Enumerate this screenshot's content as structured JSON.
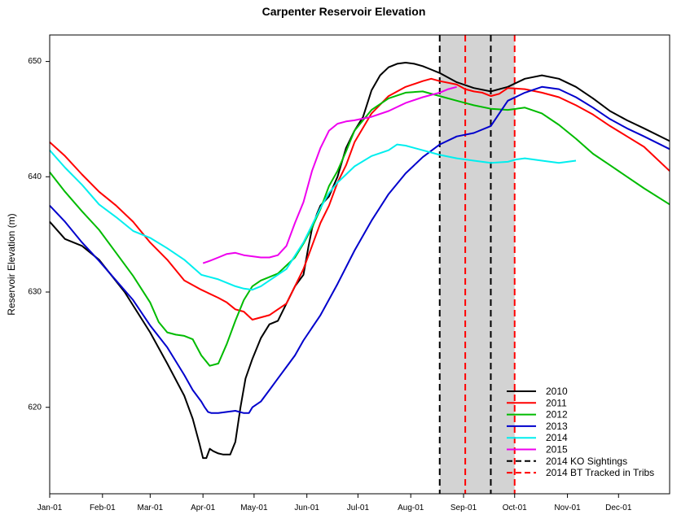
{
  "chart_data": {
    "type": "line",
    "title": "Carpenter Reservoir Elevation",
    "xlabel": "",
    "ylabel": "Reservoir Elevation (m)",
    "x_unit": "day of year",
    "xlim": [
      1,
      365
    ],
    "ylim": [
      612.5,
      652.3
    ],
    "x_ticks": [
      {
        "day": 1,
        "label": "Jan-01"
      },
      {
        "day": 32,
        "label": "Feb-01"
      },
      {
        "day": 60,
        "label": "Mar-01"
      },
      {
        "day": 91,
        "label": "Apr-01"
      },
      {
        "day": 121,
        "label": "May-01"
      },
      {
        "day": 152,
        "label": "Jun-01"
      },
      {
        "day": 182,
        "label": "Jul-01"
      },
      {
        "day": 213,
        "label": "Aug-01"
      },
      {
        "day": 244,
        "label": "Sep-01"
      },
      {
        "day": 274,
        "label": "Oct-01"
      },
      {
        "day": 305,
        "label": "Nov-01"
      },
      {
        "day": 335,
        "label": "Dec-01"
      }
    ],
    "y_ticks": [
      620,
      630,
      640,
      650
    ],
    "shaded_region": {
      "from": 230,
      "to": 274,
      "color": "#d3d3d3"
    },
    "vertical_lines": [
      {
        "day": 230,
        "series": "2014 KO Sightings",
        "color": "#000000"
      },
      {
        "day": 260,
        "series": "2014 KO Sightings",
        "color": "#000000"
      },
      {
        "day": 245,
        "series": "2014 BT Tracked in Tribs",
        "color": "#ff0000"
      },
      {
        "day": 274,
        "series": "2014 BT Tracked in Tribs",
        "color": "#ff0000"
      }
    ],
    "series": [
      {
        "name": "2010",
        "color": "#000000",
        "x": [
          1,
          10,
          20,
          30,
          45,
          60,
          70,
          80,
          85,
          89,
          91,
          93,
          95,
          97,
          100,
          103,
          107,
          110,
          113,
          116,
          120,
          125,
          130,
          135,
          140,
          145,
          150,
          153,
          155,
          158,
          160,
          165,
          170,
          175,
          180,
          185,
          190,
          195,
          200,
          205,
          210,
          215,
          220,
          225,
          230,
          240,
          250,
          260,
          270,
          280,
          290,
          300,
          310,
          320,
          330,
          340,
          350,
          365
        ],
        "y": [
          636.1,
          634.6,
          634.0,
          632.8,
          630.0,
          626.5,
          623.8,
          621.0,
          619.0,
          616.8,
          615.6,
          615.6,
          616.4,
          616.2,
          616.0,
          615.9,
          615.9,
          617.0,
          620.0,
          622.5,
          624.2,
          626.0,
          627.2,
          627.5,
          629.0,
          630.5,
          631.5,
          634.0,
          635.5,
          636.8,
          637.5,
          638.3,
          640.0,
          642.5,
          644.0,
          645.2,
          647.5,
          648.8,
          649.5,
          649.8,
          649.9,
          649.8,
          649.6,
          649.3,
          649.0,
          648.2,
          647.7,
          647.4,
          647.8,
          648.5,
          648.8,
          648.5,
          647.8,
          646.8,
          645.7,
          644.9,
          644.2,
          643.1
        ]
      },
      {
        "name": "2011",
        "color": "#ff0000",
        "x": [
          1,
          10,
          20,
          30,
          40,
          50,
          60,
          70,
          80,
          90,
          100,
          105,
          110,
          115,
          120,
          130,
          140,
          145,
          150,
          155,
          160,
          165,
          170,
          175,
          180,
          190,
          200,
          210,
          220,
          225,
          230,
          240,
          245,
          250,
          255,
          260,
          265,
          270,
          280,
          290,
          300,
          310,
          320,
          330,
          340,
          350,
          365
        ],
        "y": [
          643.0,
          641.8,
          640.2,
          638.7,
          637.5,
          636.1,
          634.3,
          632.8,
          631.0,
          630.2,
          629.5,
          629.1,
          628.5,
          628.3,
          627.6,
          628.0,
          629.0,
          630.5,
          632.0,
          634.0,
          636.0,
          637.5,
          639.5,
          641.0,
          643.0,
          645.5,
          647.0,
          647.8,
          648.3,
          648.5,
          648.3,
          648.0,
          647.6,
          647.4,
          647.3,
          647.0,
          647.2,
          647.7,
          647.6,
          647.3,
          646.9,
          646.2,
          645.4,
          644.4,
          643.5,
          642.6,
          640.5
        ]
      },
      {
        "name": "2012",
        "color": "#00bb00",
        "x": [
          1,
          10,
          20,
          30,
          40,
          50,
          60,
          65,
          70,
          75,
          80,
          85,
          90,
          95,
          100,
          105,
          110,
          115,
          120,
          125,
          130,
          135,
          140,
          145,
          150,
          155,
          160,
          165,
          170,
          175,
          180,
          190,
          200,
          210,
          220,
          230,
          240,
          250,
          260,
          270,
          275,
          280,
          290,
          300,
          310,
          320,
          330,
          340,
          350,
          365
        ],
        "y": [
          640.4,
          638.7,
          637.0,
          635.4,
          633.4,
          631.4,
          629.1,
          627.4,
          626.5,
          626.3,
          626.2,
          625.9,
          624.5,
          623.6,
          623.8,
          625.5,
          627.5,
          629.3,
          630.5,
          631.0,
          631.3,
          631.6,
          632.3,
          633.0,
          634.2,
          635.6,
          637.2,
          639.2,
          640.5,
          642.2,
          644.0,
          645.8,
          646.8,
          647.3,
          647.4,
          647.0,
          646.6,
          646.2,
          645.9,
          645.8,
          645.9,
          646.0,
          645.5,
          644.5,
          643.3,
          642.0,
          641.0,
          640.0,
          639.0,
          637.6
        ]
      },
      {
        "name": "2013",
        "color": "#0000cc",
        "x": [
          1,
          10,
          20,
          30,
          40,
          50,
          60,
          70,
          80,
          85,
          90,
          92,
          94,
          96,
          100,
          105,
          110,
          115,
          118,
          120,
          125,
          130,
          135,
          140,
          145,
          150,
          160,
          170,
          180,
          190,
          200,
          210,
          220,
          230,
          240,
          250,
          260,
          265,
          270,
          280,
          290,
          300,
          310,
          320,
          330,
          340,
          350,
          365
        ],
        "y": [
          637.5,
          636.1,
          634.3,
          632.7,
          631.0,
          629.3,
          627.1,
          625.2,
          622.8,
          621.5,
          620.5,
          620.0,
          619.6,
          619.5,
          619.5,
          619.6,
          619.7,
          619.5,
          619.5,
          620.0,
          620.5,
          621.5,
          622.5,
          623.5,
          624.5,
          625.8,
          628.0,
          630.7,
          633.6,
          636.2,
          638.5,
          640.3,
          641.7,
          642.8,
          643.5,
          643.8,
          644.4,
          645.5,
          646.6,
          647.3,
          647.8,
          647.6,
          646.9,
          646.0,
          645.0,
          644.2,
          643.5,
          642.4
        ]
      },
      {
        "name": "2014",
        "color": "#00eeee",
        "x": [
          1,
          10,
          20,
          30,
          40,
          50,
          60,
          70,
          80,
          90,
          100,
          110,
          115,
          120,
          125,
          130,
          140,
          150,
          155,
          160,
          165,
          170,
          175,
          180,
          190,
          200,
          205,
          210,
          220,
          230,
          240,
          250,
          260,
          270,
          275,
          280,
          290,
          300,
          305,
          310
        ],
        "y": [
          642.3,
          640.8,
          639.3,
          637.6,
          636.5,
          635.3,
          634.7,
          633.8,
          632.8,
          631.5,
          631.1,
          630.5,
          630.3,
          630.2,
          630.5,
          631.0,
          632.0,
          634.3,
          635.8,
          637.3,
          638.6,
          639.5,
          640.2,
          640.9,
          641.8,
          642.3,
          642.8,
          642.7,
          642.3,
          641.9,
          641.6,
          641.4,
          641.2,
          641.3,
          641.5,
          641.6,
          641.4,
          641.2,
          641.3,
          641.4
        ]
      },
      {
        "name": "2015",
        "color": "#ee00ee",
        "x": [
          91,
          95,
          100,
          105,
          110,
          115,
          120,
          125,
          130,
          135,
          140,
          145,
          150,
          155,
          160,
          165,
          170,
          175,
          180,
          190,
          200,
          210,
          220,
          230,
          235,
          240
        ],
        "y": [
          632.5,
          632.7,
          633.0,
          633.3,
          633.4,
          633.2,
          633.1,
          633.0,
          633.0,
          633.2,
          634.0,
          636.0,
          637.8,
          640.5,
          642.5,
          644.0,
          644.6,
          644.8,
          644.9,
          645.2,
          645.7,
          646.4,
          646.9,
          647.3,
          647.6,
          647.8
        ]
      }
    ],
    "legend": {
      "placement": "bottom-right",
      "entries": [
        {
          "label": "2010",
          "color": "#000000",
          "dash": false
        },
        {
          "label": "2011",
          "color": "#ff0000",
          "dash": false
        },
        {
          "label": "2012",
          "color": "#00bb00",
          "dash": false
        },
        {
          "label": "2013",
          "color": "#0000cc",
          "dash": false
        },
        {
          "label": "2014",
          "color": "#00eeee",
          "dash": false
        },
        {
          "label": "2015",
          "color": "#ee00ee",
          "dash": false
        },
        {
          "label": "2014 KO Sightings",
          "color": "#000000",
          "dash": true
        },
        {
          "label": "2014 BT Tracked in Tribs",
          "color": "#ff0000",
          "dash": true
        }
      ]
    }
  }
}
